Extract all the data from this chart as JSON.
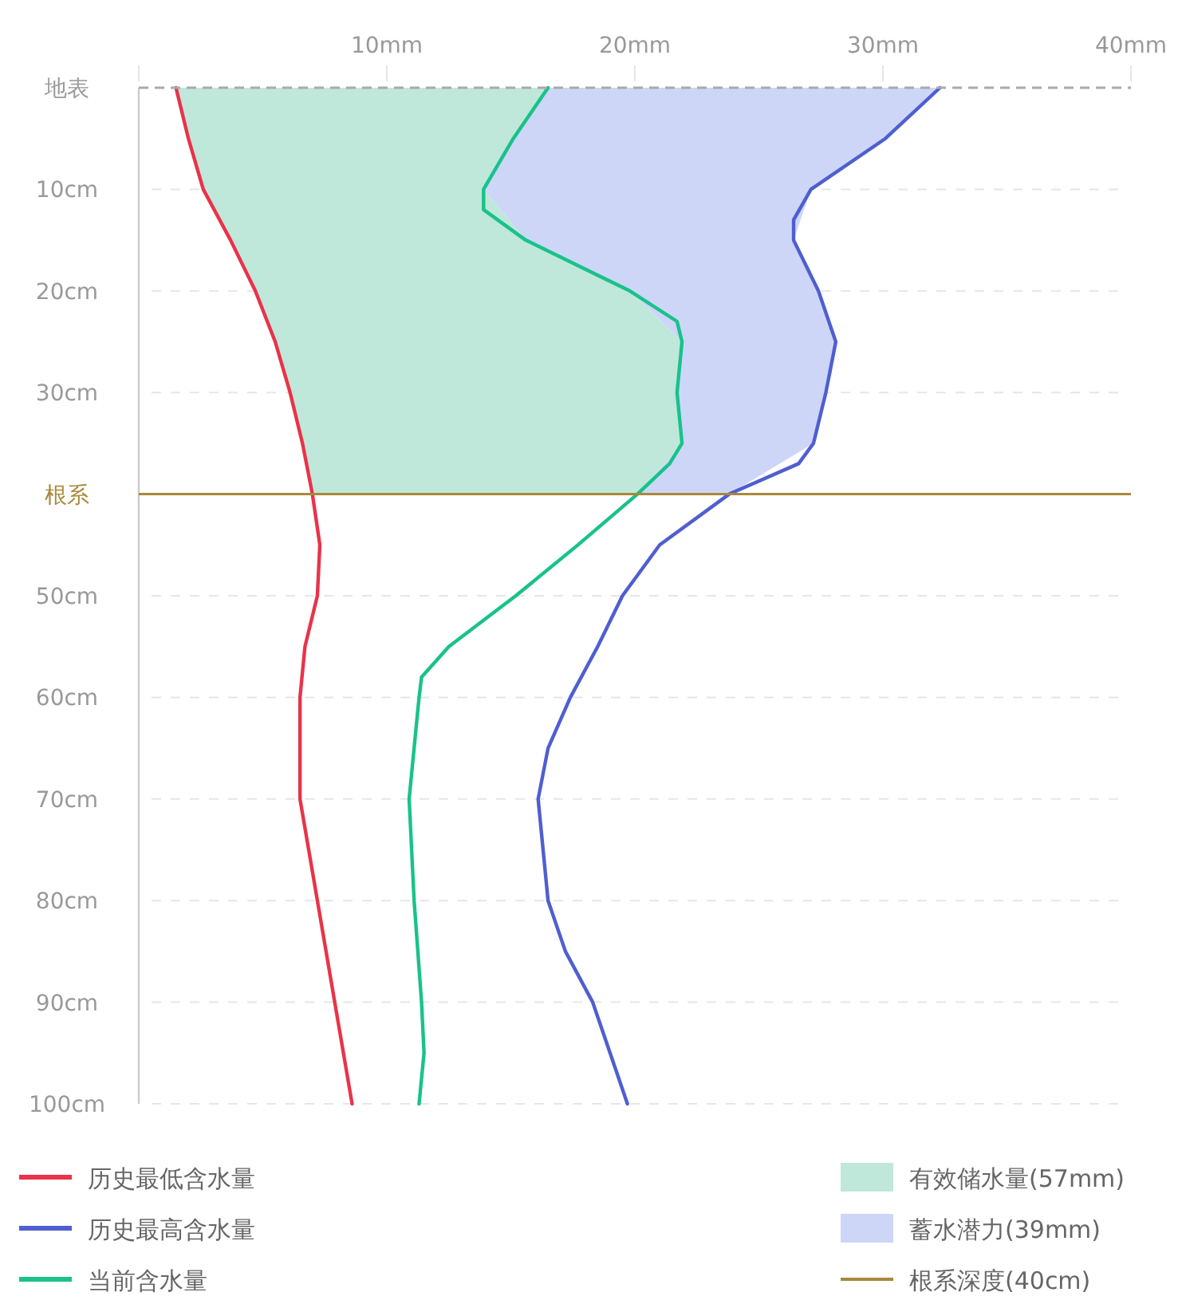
{
  "chart_data": {
    "type": "line",
    "xlim": [
      0,
      40
    ],
    "xticks": [
      {
        "value": 0,
        "label": null
      },
      {
        "value": 10,
        "label": "10mm"
      },
      {
        "value": 20,
        "label": "20mm"
      },
      {
        "value": 30,
        "label": "30mm"
      },
      {
        "value": 40,
        "label": "40mm"
      }
    ],
    "ylim": [
      100,
      0
    ],
    "yticks": [
      {
        "value": 0,
        "label": "地表"
      },
      {
        "value": 10,
        "label": "10cm"
      },
      {
        "value": 20,
        "label": "20cm"
      },
      {
        "value": 30,
        "label": "30cm"
      },
      {
        "value": 40,
        "label": "根系"
      },
      {
        "value": 50,
        "label": "50cm"
      },
      {
        "value": 60,
        "label": "60cm"
      },
      {
        "value": 70,
        "label": "70cm"
      },
      {
        "value": 80,
        "label": "80cm"
      },
      {
        "value": 90,
        "label": "90cm"
      },
      {
        "value": 100,
        "label": "100cm"
      }
    ],
    "grid": "y",
    "legend": "bottom",
    "series": [
      {
        "type": "area",
        "name": "有效储水量(57mm)",
        "color": "#bfe8da",
        "x": [
          1.5,
          2.0,
          2.6,
          3.7,
          4.7,
          5.5,
          6.1,
          6.6,
          7.0,
          20.1,
          21.9,
          21.7,
          21.9,
          19.8,
          15.6,
          13.9,
          15.1,
          16.5
        ],
        "values": [
          0,
          5,
          10,
          15,
          20,
          25,
          30,
          35,
          40,
          40,
          35,
          30,
          25,
          20,
          15,
          10,
          5,
          0
        ]
      },
      {
        "type": "area",
        "name": "蓄水潜力(39mm)",
        "color": "#cdd6f7",
        "x": [
          16.5,
          15.1,
          13.9,
          15.6,
          19.8,
          21.9,
          21.7,
          21.9,
          20.1,
          23.8,
          27.2,
          27.7,
          28.1,
          27.4,
          26.4,
          27.1,
          30.1,
          32.3
        ],
        "values": [
          0,
          5,
          10,
          15,
          20,
          25,
          30,
          35,
          40,
          40,
          35,
          30,
          25,
          20,
          15,
          10,
          5,
          0
        ]
      },
      {
        "name": "历史最低含水量",
        "color": "#e8334a",
        "x": [
          1.5,
          2.0,
          2.6,
          3.7,
          4.7,
          5.5,
          6.1,
          6.6,
          7.0,
          7.3,
          7.2,
          6.7,
          6.5,
          6.5,
          7.2,
          7.9,
          8.6
        ],
        "values": [
          0,
          5,
          10,
          15,
          20,
          25,
          30,
          35,
          40,
          45,
          50,
          55,
          60,
          70,
          80,
          90,
          100
        ]
      },
      {
        "name": "历史最高含水量",
        "color": "#4f5fd0",
        "x": [
          32.3,
          30.1,
          27.1,
          26.4,
          26.4,
          27.4,
          28.1,
          27.7,
          27.2,
          26.6,
          23.8,
          21.0,
          19.5,
          18.5,
          17.4,
          16.5,
          16.1,
          16.3,
          16.5,
          17.2,
          18.3,
          19.0,
          19.7
        ],
        "values": [
          0,
          5,
          10,
          13,
          15,
          20,
          25,
          30,
          35,
          37,
          40,
          45,
          50,
          55,
          60,
          65,
          70,
          75,
          80,
          85,
          90,
          95,
          100
        ]
      },
      {
        "name": "当前含水量",
        "color": "#19c28a",
        "x": [
          16.5,
          15.1,
          13.9,
          13.9,
          15.6,
          19.8,
          21.7,
          21.9,
          21.7,
          21.9,
          21.4,
          20.1,
          17.7,
          15.2,
          12.5,
          11.4,
          11.3,
          10.9,
          11.1,
          11.4,
          11.5,
          11.3
        ],
        "values": [
          0,
          5,
          10,
          12,
          15,
          20,
          23,
          25,
          30,
          35,
          37,
          40,
          45,
          50,
          55,
          58,
          60,
          70,
          80,
          90,
          95,
          100
        ]
      }
    ],
    "ref_lines": [
      {
        "axis": "y",
        "value": 0,
        "color": "#aaaaaa",
        "line_style": "dashed"
      },
      {
        "axis": "y",
        "value": 40,
        "color": "#a8893a",
        "line_style": "solid",
        "label": "根系深度(40cm)"
      }
    ]
  }
}
